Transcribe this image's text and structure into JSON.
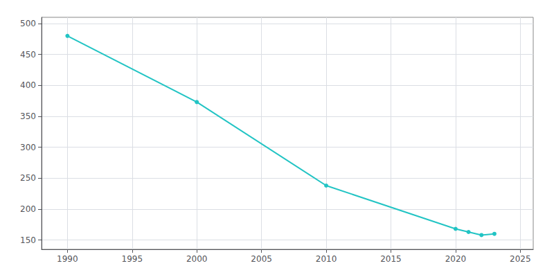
{
  "chart_data": {
    "type": "line",
    "x": [
      1990,
      2000,
      2010,
      2020,
      2021,
      2022,
      2023
    ],
    "values": [
      480,
      373,
      238,
      168,
      163,
      158,
      160
    ],
    "color": "#22c4c4",
    "marker": "circle",
    "xlim": [
      1988,
      2026
    ],
    "ylim": [
      135,
      510
    ],
    "xticks": [
      1990,
      1995,
      2000,
      2005,
      2010,
      2015,
      2020,
      2025
    ],
    "yticks": [
      150,
      200,
      250,
      300,
      350,
      400,
      450,
      500
    ],
    "grid": true
  }
}
